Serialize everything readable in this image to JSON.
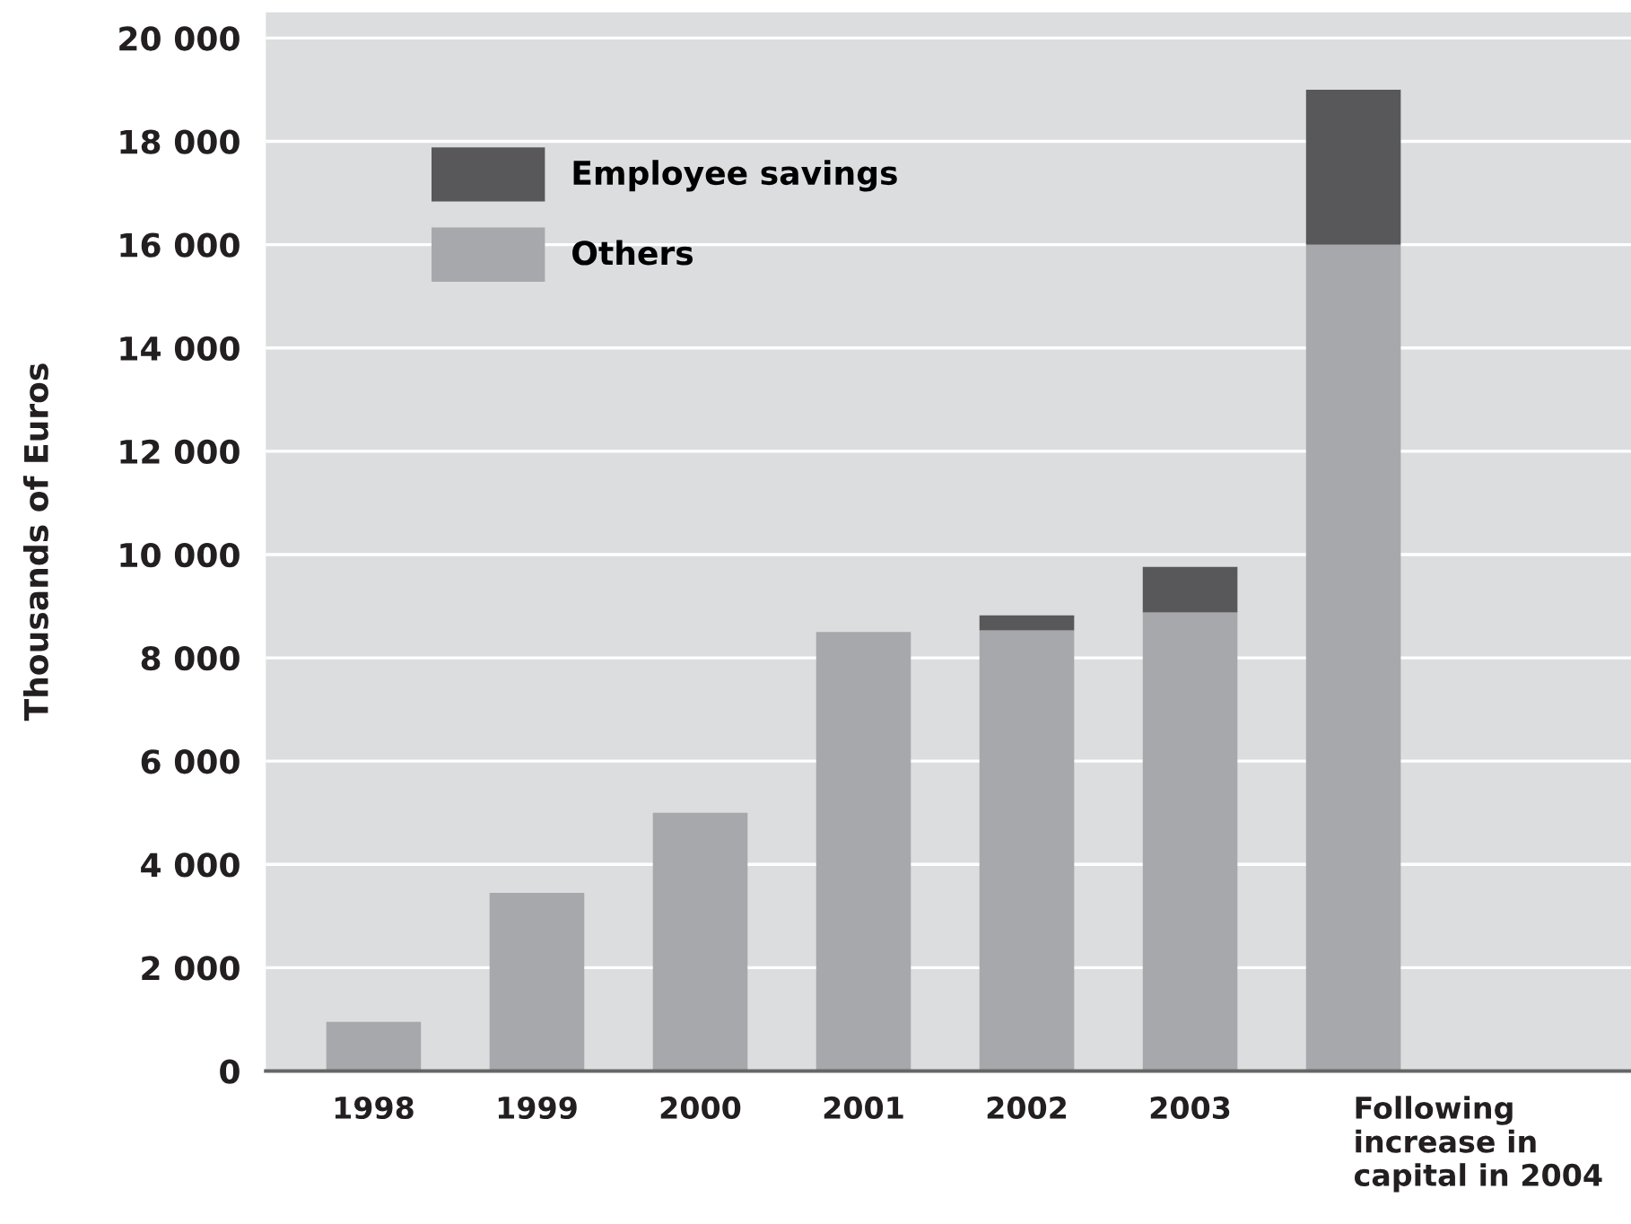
{
  "chart_data": {
    "type": "bar",
    "stacked": true,
    "ylabel": "Thousands of Euros",
    "categories": [
      "1998",
      "1999",
      "2000",
      "2001",
      "2002",
      "2003",
      "Following\nincrease in\ncapital in 2004"
    ],
    "series": [
      {
        "name": "Others",
        "color": "#a7a8ab",
        "values": [
          950,
          3450,
          5000,
          8500,
          8530,
          8880,
          16000
        ]
      },
      {
        "name": "Employee savings",
        "color": "#58585a",
        "values": [
          null,
          null,
          null,
          null,
          290,
          880,
          3000
        ]
      }
    ],
    "ylim": [
      0,
      20500
    ],
    "yticks": [
      {
        "value": 0,
        "label": "0"
      },
      {
        "value": 2000,
        "label": "2 000"
      },
      {
        "value": 4000,
        "label": "4 000"
      },
      {
        "value": 6000,
        "label": "6 000"
      },
      {
        "value": 8000,
        "label": "8 000"
      },
      {
        "value": 10000,
        "label": "10 000"
      },
      {
        "value": 12000,
        "label": "12 000"
      },
      {
        "value": 14000,
        "label": "14 000"
      },
      {
        "value": 16000,
        "label": "16 000"
      },
      {
        "value": 18000,
        "label": "18 000"
      },
      {
        "value": 20000,
        "label": "20 000"
      }
    ],
    "grid": "y",
    "legend": "top left"
  }
}
